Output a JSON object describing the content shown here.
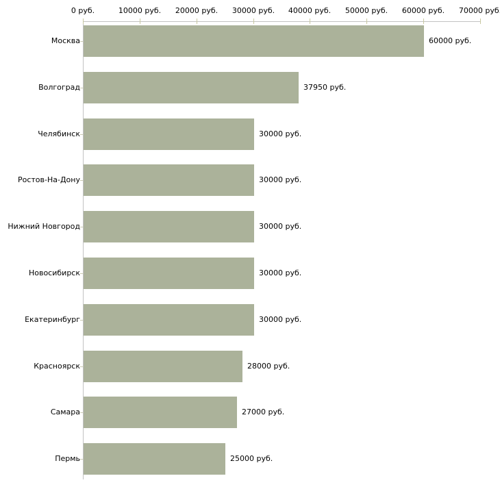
{
  "chart_data": {
    "type": "bar",
    "orientation": "horizontal",
    "title": "",
    "xlabel": "",
    "ylabel": "",
    "categories": [
      "Москва",
      "Волгоград",
      "Челябинск",
      "Ростов-На-Дону",
      "Нижний Новгород",
      "Новосибирск",
      "Екатеринбург",
      "Красноярск",
      "Самара",
      "Пермь"
    ],
    "values": [
      60000,
      37950,
      30000,
      30000,
      30000,
      30000,
      30000,
      28000,
      27000,
      25000
    ],
    "value_labels": [
      "60000 руб.",
      "37950 руб.",
      "30000 руб.",
      "30000 руб.",
      "30000 руб.",
      "30000 руб.",
      "30000 руб.",
      "28000 руб.",
      "27000 руб.",
      "25000 руб."
    ],
    "x_axis": {
      "position": "top",
      "min": 0,
      "max": 70000,
      "ticks": [
        0,
        10000,
        20000,
        30000,
        40000,
        50000,
        60000,
        70000
      ],
      "tick_labels": [
        "0 руб.",
        "10000 руб.",
        "20000 руб.",
        "30000 руб.",
        "40000 руб.",
        "50000 руб.",
        "60000 руб.",
        "70000 руб."
      ]
    },
    "legend": null,
    "grid": false,
    "colors": {
      "bar": "#abb29a",
      "axis_line": "#c2c2c2",
      "tick_mark": "#c9c9a0",
      "text": "#000000",
      "background": "#ffffff"
    }
  }
}
